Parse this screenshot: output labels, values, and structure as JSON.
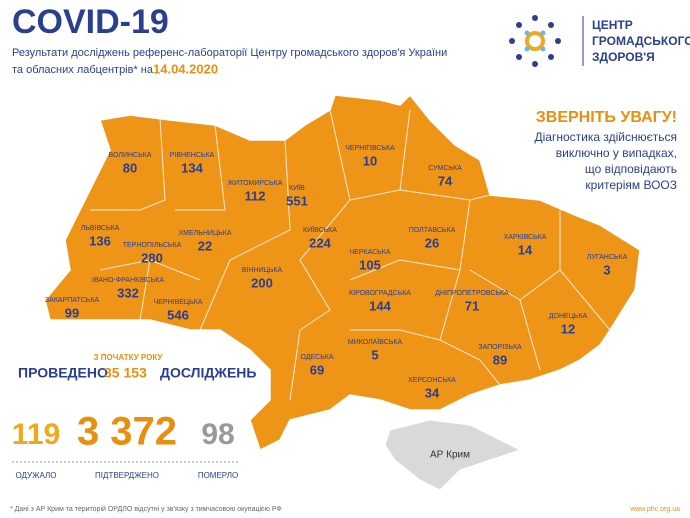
{
  "header": {
    "title": "COVID-19",
    "subtitle_line1": "Результати досліджень референс-лабораторії Центру громадського здоров'я України",
    "subtitle_line2": "та обласних лабцентрів* на",
    "date": "14.04.2020"
  },
  "logo": {
    "lines": [
      "ЦЕНТР",
      "ГРОМАДСЬКОГО",
      "ЗДОРОВ'Я"
    ]
  },
  "notice": {
    "title": "ЗВЕРНІТЬ УВАГУ!",
    "lines": [
      "Діагностика здійснюється",
      "виключно у випадках,",
      "що відповідають",
      "критеріям ВООЗ"
    ]
  },
  "regions": [
    {
      "name": "ВОЛИНСЬКА",
      "value": 80
    },
    {
      "name": "РІВНЕНСЬКА",
      "value": 134
    },
    {
      "name": "ЖИТОМИРСЬКА",
      "value": 112
    },
    {
      "name": "КИЇВ",
      "value": 551
    },
    {
      "name": "ЧЕРНІГІВСЬКА",
      "value": 10
    },
    {
      "name": "СУМСЬКА",
      "value": 74
    },
    {
      "name": "ЛЬВІВСЬКА",
      "value": 136
    },
    {
      "name": "ТЕРНОПІЛЬСЬКА",
      "value": 280
    },
    {
      "name": "ХМЕЛЬНИЦЬКА",
      "value": 22
    },
    {
      "name": "КИЇВСЬКА",
      "value": 224
    },
    {
      "name": "ПОЛТАВСЬКА",
      "value": 26
    },
    {
      "name": "ХАРКІВСЬКА",
      "value": 14
    },
    {
      "name": "ЛУГАНСЬКА",
      "value": 3
    },
    {
      "name": "ЧЕРКАСЬКА",
      "value": 105
    },
    {
      "name": "ВІННИЦЬКА",
      "value": 200
    },
    {
      "name": "ІВАНО-ФРАНКІВСЬКА",
      "value": 332
    },
    {
      "name": "ЗАКАРПАТСЬКА",
      "value": 99
    },
    {
      "name": "ЧЕРНІВЕЦЬКА",
      "value": 546
    },
    {
      "name": "КІРОВОГРАДСЬКА",
      "value": 144
    },
    {
      "name": "ДНІПРОПЕТРОВСЬКА",
      "value": 71
    },
    {
      "name": "ДОНЕЦЬКА",
      "value": 12
    },
    {
      "name": "ОДЕСЬКА",
      "value": 69
    },
    {
      "name": "МИКОЛАЇВСЬКА",
      "value": 5
    },
    {
      "name": "ЗАПОРІЗЬКА",
      "value": 89
    },
    {
      "name": "ХЕРСОНСЬКА",
      "value": 34
    }
  ],
  "crimea": "АР Крим",
  "tests": {
    "caption": "З ПОЧАТКУ РОКУ",
    "prefix": "ПРОВЕДЕНО",
    "count": "35 153",
    "suffix": "ДОСЛІДЖЕНЬ"
  },
  "totals": [
    {
      "value": 119,
      "label": "ОДУЖАЛО"
    },
    {
      "value": "3 372",
      "label": "ПІДТВЕРДЖЕНО"
    },
    {
      "value": 98,
      "label": "ПОМЕРЛО"
    }
  ],
  "footnote": "* Дані з АР Крим та територій ОРДЛО відсутні у зв'язку з тимчасовою окупацією РФ",
  "website": "www.phc.org.ua"
}
